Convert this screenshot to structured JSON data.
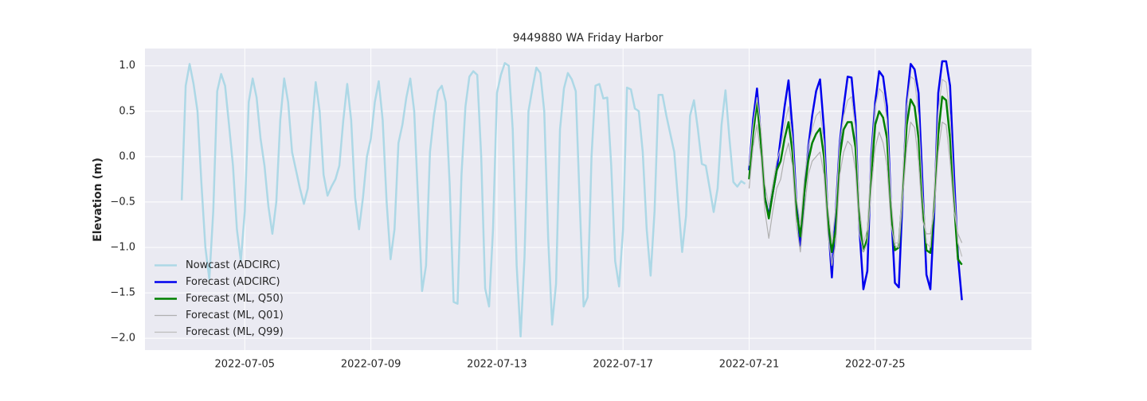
{
  "chart_data": {
    "type": "line",
    "title": "9449880 WA Friday Harbor",
    "y_label": "Elevation (m)",
    "xlim": [
      "2022-07-01 20:00",
      "2022-07-29 23:00"
    ],
    "xticks": [
      "2022-07-05",
      "2022-07-09",
      "2022-07-13",
      "2022-07-17",
      "2022-07-21",
      "2022-07-25"
    ],
    "ylim": [
      -2.13,
      1.19
    ],
    "yticks": [
      {
        "value": -2,
        "label": "−2.0"
      },
      {
        "value": -1.5,
        "label": "−1.5"
      },
      {
        "value": -1,
        "label": "−1.0"
      },
      {
        "value": -0.5,
        "label": "−0.5"
      },
      {
        "value": 0,
        "label": "0.0"
      },
      0.5,
      {
        "value": 1,
        "label": "1.0"
      }
    ],
    "grid": true,
    "legend": "lower left",
    "background": "#eaeaf2",
    "series": [
      {
        "name": "Nowcast (ADCIRC)",
        "color": "#add8e6",
        "width": 2.5,
        "x": [
          "2022-07-03 00:00",
          "2022-07-03 03:00",
          "2022-07-03 06:00",
          "2022-07-03 09:00",
          "2022-07-03 12:00",
          "2022-07-03 15:00",
          "2022-07-03 18:00",
          "2022-07-03 21:00",
          "2022-07-04 00:00",
          "2022-07-04 03:00",
          "2022-07-04 06:00",
          "2022-07-04 09:00",
          "2022-07-04 12:00",
          "2022-07-04 15:00",
          "2022-07-04 18:00",
          "2022-07-04 21:00",
          "2022-07-05 00:00",
          "2022-07-05 03:00",
          "2022-07-05 06:00",
          "2022-07-05 09:00",
          "2022-07-05 12:00",
          "2022-07-05 15:00",
          "2022-07-05 18:00",
          "2022-07-05 21:00",
          "2022-07-06 00:00",
          "2022-07-06 03:00",
          "2022-07-06 06:00",
          "2022-07-06 09:00",
          "2022-07-06 12:00",
          "2022-07-06 15:00",
          "2022-07-06 18:00",
          "2022-07-06 21:00",
          "2022-07-07 00:00",
          "2022-07-07 03:00",
          "2022-07-07 06:00",
          "2022-07-07 09:00",
          "2022-07-07 12:00",
          "2022-07-07 15:00",
          "2022-07-07 18:00",
          "2022-07-07 21:00",
          "2022-07-08 00:00",
          "2022-07-08 03:00",
          "2022-07-08 06:00",
          "2022-07-08 09:00",
          "2022-07-08 12:00",
          "2022-07-08 15:00",
          "2022-07-08 18:00",
          "2022-07-08 21:00",
          "2022-07-09 00:00",
          "2022-07-09 03:00",
          "2022-07-09 06:00",
          "2022-07-09 09:00",
          "2022-07-09 12:00",
          "2022-07-09 15:00",
          "2022-07-09 18:00",
          "2022-07-09 21:00",
          "2022-07-10 00:00",
          "2022-07-10 03:00",
          "2022-07-10 06:00",
          "2022-07-10 09:00",
          "2022-07-10 12:00",
          "2022-07-10 15:00",
          "2022-07-10 18:00",
          "2022-07-10 21:00",
          "2022-07-11 00:00",
          "2022-07-11 03:00",
          "2022-07-11 06:00",
          "2022-07-11 09:00",
          "2022-07-11 12:00",
          "2022-07-11 15:00",
          "2022-07-11 18:00",
          "2022-07-11 21:00",
          "2022-07-12 00:00",
          "2022-07-12 03:00",
          "2022-07-12 06:00",
          "2022-07-12 09:00",
          "2022-07-12 12:00",
          "2022-07-12 15:00",
          "2022-07-12 18:00",
          "2022-07-12 21:00",
          "2022-07-13 00:00",
          "2022-07-13 03:00",
          "2022-07-13 06:00",
          "2022-07-13 09:00",
          "2022-07-13 12:00",
          "2022-07-13 15:00",
          "2022-07-13 18:00",
          "2022-07-13 21:00",
          "2022-07-14 00:00",
          "2022-07-14 03:00",
          "2022-07-14 06:00",
          "2022-07-14 09:00",
          "2022-07-14 12:00",
          "2022-07-14 15:00",
          "2022-07-14 18:00",
          "2022-07-14 21:00",
          "2022-07-15 00:00",
          "2022-07-15 03:00",
          "2022-07-15 06:00",
          "2022-07-15 09:00",
          "2022-07-15 12:00",
          "2022-07-15 15:00",
          "2022-07-15 18:00",
          "2022-07-15 21:00",
          "2022-07-16 00:00",
          "2022-07-16 03:00",
          "2022-07-16 06:00",
          "2022-07-16 09:00",
          "2022-07-16 12:00",
          "2022-07-16 15:00",
          "2022-07-16 18:00",
          "2022-07-16 21:00",
          "2022-07-17 00:00",
          "2022-07-17 03:00",
          "2022-07-17 06:00",
          "2022-07-17 09:00",
          "2022-07-17 12:00",
          "2022-07-17 15:00",
          "2022-07-17 18:00",
          "2022-07-17 21:00",
          "2022-07-18 00:00",
          "2022-07-18 03:00",
          "2022-07-18 06:00",
          "2022-07-18 09:00",
          "2022-07-18 12:00",
          "2022-07-18 15:00",
          "2022-07-18 18:00",
          "2022-07-18 21:00",
          "2022-07-19 00:00",
          "2022-07-19 03:00",
          "2022-07-19 06:00",
          "2022-07-19 09:00",
          "2022-07-19 12:00",
          "2022-07-19 15:00",
          "2022-07-19 18:00",
          "2022-07-19 21:00",
          "2022-07-20 00:00",
          "2022-07-20 03:00",
          "2022-07-20 06:00",
          "2022-07-20 09:00",
          "2022-07-20 12:00",
          "2022-07-20 15:00",
          "2022-07-20 18:00",
          "2022-07-20 21:00"
        ],
        "values": [
          -0.48,
          0.78,
          1.02,
          0.8,
          0.5,
          -0.3,
          -1.0,
          -1.35,
          -0.6,
          0.72,
          0.91,
          0.78,
          0.35,
          -0.1,
          -0.8,
          -1.15,
          -0.6,
          0.6,
          0.86,
          0.65,
          0.2,
          -0.1,
          -0.55,
          -0.85,
          -0.5,
          0.4,
          0.86,
          0.6,
          0.05,
          -0.15,
          -0.35,
          -0.52,
          -0.35,
          0.3,
          0.82,
          0.5,
          -0.2,
          -0.43,
          -0.33,
          -0.25,
          -0.1,
          0.4,
          0.8,
          0.4,
          -0.45,
          -0.8,
          -0.45,
          0.0,
          0.2,
          0.6,
          0.83,
          0.4,
          -0.5,
          -1.13,
          -0.8,
          0.15,
          0.35,
          0.65,
          0.86,
          0.5,
          -0.5,
          -1.48,
          -1.2,
          0.05,
          0.45,
          0.72,
          0.78,
          0.6,
          -0.3,
          -1.6,
          -1.62,
          -0.2,
          0.55,
          0.88,
          0.94,
          0.9,
          0.0,
          -1.45,
          -1.65,
          -0.8,
          0.7,
          0.9,
          1.03,
          1.0,
          0.3,
          -1.2,
          -1.98,
          -1.1,
          0.5,
          0.75,
          0.98,
          0.92,
          0.5,
          -0.9,
          -1.85,
          -1.4,
          0.3,
          0.75,
          0.92,
          0.85,
          0.72,
          -0.5,
          -1.65,
          -1.55,
          0.0,
          0.78,
          0.8,
          0.64,
          0.65,
          -0.1,
          -1.15,
          -1.43,
          -0.8,
          0.76,
          0.74,
          0.53,
          0.5,
          0.05,
          -0.8,
          -1.31,
          -0.6,
          0.68,
          0.68,
          0.45,
          0.25,
          0.05,
          -0.5,
          -1.05,
          -0.65,
          0.45,
          0.62,
          0.3,
          -0.08,
          -0.1,
          -0.35,
          -0.61,
          -0.35,
          0.35,
          0.73,
          0.2,
          -0.28,
          -0.33,
          -0.27,
          -0.3
        ]
      },
      {
        "name": "Forecast (ADCIRC)",
        "color": "#0000ee",
        "width": 2.5,
        "x": [
          "2022-07-21 00:00",
          "2022-07-21 03:00",
          "2022-07-21 06:00",
          "2022-07-21 09:00",
          "2022-07-21 12:00",
          "2022-07-21 15:00",
          "2022-07-21 18:00",
          "2022-07-21 21:00",
          "2022-07-22 00:00",
          "2022-07-22 03:00",
          "2022-07-22 06:00",
          "2022-07-22 09:00",
          "2022-07-22 12:00",
          "2022-07-22 15:00",
          "2022-07-22 18:00",
          "2022-07-22 21:00",
          "2022-07-23 00:00",
          "2022-07-23 03:00",
          "2022-07-23 06:00",
          "2022-07-23 09:00",
          "2022-07-23 12:00",
          "2022-07-23 15:00",
          "2022-07-23 18:00",
          "2022-07-23 21:00",
          "2022-07-24 00:00",
          "2022-07-24 03:00",
          "2022-07-24 06:00",
          "2022-07-24 09:00",
          "2022-07-24 12:00",
          "2022-07-24 15:00",
          "2022-07-24 18:00",
          "2022-07-24 21:00",
          "2022-07-25 00:00",
          "2022-07-25 03:00",
          "2022-07-25 06:00",
          "2022-07-25 09:00",
          "2022-07-25 12:00",
          "2022-07-25 15:00",
          "2022-07-25 18:00",
          "2022-07-25 21:00",
          "2022-07-26 00:00",
          "2022-07-26 03:00",
          "2022-07-26 06:00",
          "2022-07-26 09:00",
          "2022-07-26 12:00",
          "2022-07-26 15:00",
          "2022-07-26 18:00",
          "2022-07-26 21:00",
          "2022-07-27 00:00",
          "2022-07-27 03:00",
          "2022-07-27 06:00",
          "2022-07-27 09:00",
          "2022-07-27 12:00",
          "2022-07-27 15:00",
          "2022-07-27 18:00"
        ],
        "values": [
          -0.15,
          0.4,
          0.75,
          0.2,
          -0.45,
          -0.65,
          -0.4,
          -0.15,
          0.2,
          0.55,
          0.84,
          0.3,
          -0.5,
          -0.98,
          -0.4,
          0.1,
          0.45,
          0.72,
          0.85,
          0.3,
          -0.7,
          -1.33,
          -0.6,
          0.15,
          0.55,
          0.88,
          0.87,
          0.4,
          -0.8,
          -1.46,
          -1.26,
          0.0,
          0.6,
          0.94,
          0.88,
          0.55,
          -0.55,
          -1.39,
          -1.44,
          -0.4,
          0.6,
          1.02,
          0.96,
          0.7,
          -0.3,
          -1.3,
          -1.46,
          -0.6,
          0.7,
          1.05,
          1.05,
          0.78,
          -0.2,
          -1.1,
          -1.58
        ]
      },
      {
        "name": "Forecast (ML, Q50)",
        "color": "#008000",
        "width": 2.5,
        "x": [
          "2022-07-21 00:00",
          "2022-07-21 03:00",
          "2022-07-21 06:00",
          "2022-07-21 09:00",
          "2022-07-21 12:00",
          "2022-07-21 15:00",
          "2022-07-21 18:00",
          "2022-07-21 21:00",
          "2022-07-22 00:00",
          "2022-07-22 03:00",
          "2022-07-22 06:00",
          "2022-07-22 09:00",
          "2022-07-22 12:00",
          "2022-07-22 15:00",
          "2022-07-22 18:00",
          "2022-07-22 21:00",
          "2022-07-23 00:00",
          "2022-07-23 03:00",
          "2022-07-23 06:00",
          "2022-07-23 09:00",
          "2022-07-23 12:00",
          "2022-07-23 15:00",
          "2022-07-23 18:00",
          "2022-07-23 21:00",
          "2022-07-24 00:00",
          "2022-07-24 03:00",
          "2022-07-24 06:00",
          "2022-07-24 09:00",
          "2022-07-24 12:00",
          "2022-07-24 15:00",
          "2022-07-24 18:00",
          "2022-07-24 21:00",
          "2022-07-25 00:00",
          "2022-07-25 03:00",
          "2022-07-25 06:00",
          "2022-07-25 09:00",
          "2022-07-25 12:00",
          "2022-07-25 15:00",
          "2022-07-25 18:00",
          "2022-07-25 21:00",
          "2022-07-26 00:00",
          "2022-07-26 03:00",
          "2022-07-26 06:00",
          "2022-07-26 09:00",
          "2022-07-26 12:00",
          "2022-07-26 15:00",
          "2022-07-26 18:00",
          "2022-07-26 21:00",
          "2022-07-27 00:00",
          "2022-07-27 03:00",
          "2022-07-27 06:00",
          "2022-07-27 09:00",
          "2022-07-27 12:00",
          "2022-07-27 15:00",
          "2022-07-27 18:00"
        ],
        "values": [
          -0.25,
          0.25,
          0.6,
          0.15,
          -0.45,
          -0.68,
          -0.4,
          -0.15,
          -0.05,
          0.2,
          0.38,
          0.05,
          -0.6,
          -0.88,
          -0.4,
          -0.05,
          0.15,
          0.25,
          0.31,
          0.0,
          -0.7,
          -1.05,
          -0.8,
          0.0,
          0.3,
          0.38,
          0.38,
          0.1,
          -0.7,
          -1.04,
          -0.9,
          -0.2,
          0.35,
          0.5,
          0.43,
          0.2,
          -0.6,
          -1.03,
          -1.0,
          -0.35,
          0.35,
          0.63,
          0.55,
          0.2,
          -0.5,
          -1.03,
          -1.06,
          -0.5,
          0.25,
          0.66,
          0.62,
          0.2,
          -0.5,
          -1.13,
          -1.19
        ]
      },
      {
        "name": "Forecast (ML, Q01)",
        "color": "#b0b0b0",
        "width": 1.2,
        "x": [
          "2022-07-21 00:00",
          "2022-07-21 03:00",
          "2022-07-21 06:00",
          "2022-07-21 09:00",
          "2022-07-21 12:00",
          "2022-07-21 15:00",
          "2022-07-21 18:00",
          "2022-07-21 21:00",
          "2022-07-22 00:00",
          "2022-07-22 03:00",
          "2022-07-22 06:00",
          "2022-07-22 09:00",
          "2022-07-22 12:00",
          "2022-07-22 15:00",
          "2022-07-22 18:00",
          "2022-07-22 21:00",
          "2022-07-23 00:00",
          "2022-07-23 03:00",
          "2022-07-23 06:00",
          "2022-07-23 09:00",
          "2022-07-23 12:00",
          "2022-07-23 15:00",
          "2022-07-23 18:00",
          "2022-07-23 21:00",
          "2022-07-24 00:00",
          "2022-07-24 03:00",
          "2022-07-24 06:00",
          "2022-07-24 09:00",
          "2022-07-24 12:00",
          "2022-07-24 15:00",
          "2022-07-24 18:00",
          "2022-07-24 21:00",
          "2022-07-25 00:00",
          "2022-07-25 03:00",
          "2022-07-25 06:00",
          "2022-07-25 09:00",
          "2022-07-25 12:00",
          "2022-07-25 15:00",
          "2022-07-25 18:00",
          "2022-07-25 21:00",
          "2022-07-26 00:00",
          "2022-07-26 03:00",
          "2022-07-26 06:00",
          "2022-07-26 09:00",
          "2022-07-26 12:00",
          "2022-07-26 15:00",
          "2022-07-26 18:00",
          "2022-07-26 21:00",
          "2022-07-27 00:00",
          "2022-07-27 03:00",
          "2022-07-27 06:00",
          "2022-07-27 09:00",
          "2022-07-27 12:00",
          "2022-07-27 15:00",
          "2022-07-27 18:00"
        ],
        "values": [
          -0.35,
          0.1,
          0.35,
          0.0,
          -0.6,
          -0.9,
          -0.6,
          -0.35,
          -0.25,
          0.0,
          0.15,
          -0.1,
          -0.75,
          -1.05,
          -0.6,
          -0.2,
          -0.05,
          0.0,
          0.05,
          -0.2,
          -0.85,
          -1.2,
          -0.95,
          -0.2,
          0.05,
          0.17,
          0.12,
          -0.15,
          -0.85,
          -1.05,
          -0.95,
          -0.35,
          0.1,
          0.27,
          0.15,
          -0.1,
          -0.75,
          -0.98,
          -1.0,
          -0.45,
          0.1,
          0.38,
          0.32,
          -0.05,
          -0.7,
          -0.85,
          -0.85,
          -0.6,
          0.05,
          0.38,
          0.35,
          -0.05,
          -0.6,
          -0.85,
          -0.95
        ]
      },
      {
        "name": "Forecast (ML, Q99)",
        "color": "#bcbcbc",
        "width": 1.2,
        "x": [
          "2022-07-21 00:00",
          "2022-07-21 03:00",
          "2022-07-21 06:00",
          "2022-07-21 09:00",
          "2022-07-21 12:00",
          "2022-07-21 15:00",
          "2022-07-21 18:00",
          "2022-07-21 21:00",
          "2022-07-22 00:00",
          "2022-07-22 03:00",
          "2022-07-22 06:00",
          "2022-07-22 09:00",
          "2022-07-22 12:00",
          "2022-07-22 15:00",
          "2022-07-22 18:00",
          "2022-07-22 21:00",
          "2022-07-23 00:00",
          "2022-07-23 03:00",
          "2022-07-23 06:00",
          "2022-07-23 09:00",
          "2022-07-23 12:00",
          "2022-07-23 15:00",
          "2022-07-23 18:00",
          "2022-07-23 21:00",
          "2022-07-24 00:00",
          "2022-07-24 03:00",
          "2022-07-24 06:00",
          "2022-07-24 09:00",
          "2022-07-24 12:00",
          "2022-07-24 15:00",
          "2022-07-24 18:00",
          "2022-07-24 21:00",
          "2022-07-25 00:00",
          "2022-07-25 03:00",
          "2022-07-25 06:00",
          "2022-07-25 09:00",
          "2022-07-25 12:00",
          "2022-07-25 15:00",
          "2022-07-25 18:00",
          "2022-07-25 21:00",
          "2022-07-26 00:00",
          "2022-07-26 03:00",
          "2022-07-26 06:00",
          "2022-07-26 09:00",
          "2022-07-26 12:00",
          "2022-07-26 15:00",
          "2022-07-26 18:00",
          "2022-07-26 21:00",
          "2022-07-27 00:00",
          "2022-07-27 03:00",
          "2022-07-27 06:00",
          "2022-07-27 09:00",
          "2022-07-27 12:00",
          "2022-07-27 15:00",
          "2022-07-27 18:00"
        ],
        "values": [
          -0.1,
          0.35,
          0.65,
          0.3,
          -0.3,
          -0.55,
          -0.3,
          -0.05,
          0.1,
          0.35,
          0.55,
          0.2,
          -0.45,
          -0.75,
          -0.25,
          0.1,
          0.3,
          0.45,
          0.5,
          0.15,
          -0.55,
          -0.95,
          -0.55,
          0.15,
          0.45,
          0.62,
          0.66,
          0.3,
          -0.55,
          -0.95,
          -0.8,
          0.0,
          0.55,
          0.75,
          0.7,
          0.4,
          -0.45,
          -0.95,
          -0.95,
          -0.2,
          0.55,
          0.88,
          0.85,
          0.45,
          -0.4,
          -0.95,
          -1.0,
          -0.35,
          0.5,
          0.85,
          0.82,
          0.45,
          -0.35,
          -0.95,
          -1.1
        ]
      }
    ]
  }
}
